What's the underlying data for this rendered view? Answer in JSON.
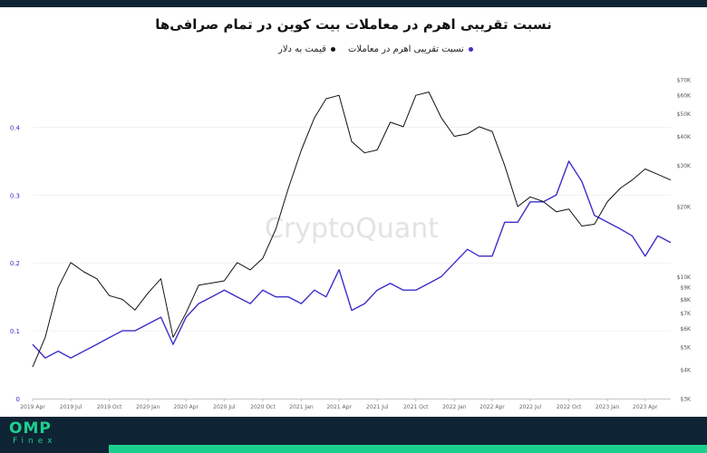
{
  "brand": {
    "logo_top": "OMP",
    "logo_bottom": "Finex"
  },
  "chart_data": {
    "type": "line",
    "title": "نسبت تقریبی اهرم در معاملات بیت کوین در تمام صرافی‌ها",
    "watermark": "CryptoQuant",
    "legend": {
      "leverage_label": "نسبت تقریبی اهرم در معاملات",
      "price_label": "قیمت به دلار"
    },
    "colors": {
      "leverage": "#3b2fc9",
      "price": "#111111"
    },
    "x_ticks": [
      "2019 Apr",
      "2019 Jul",
      "2019 Oct",
      "2020 Jan",
      "2020 Apr",
      "2020 Jul",
      "2020 Oct",
      "2021 Jan",
      "2021 Apr",
      "2021 Jul",
      "2021 Oct",
      "2022 Jan",
      "2022 Apr",
      "2022 Jul",
      "2022 Oct",
      "2023 Jan",
      "2023 Apr"
    ],
    "y_left": {
      "ylim": [
        0,
        0.47
      ],
      "ticks": [
        "0",
        "0.1",
        "0.2",
        "0.3",
        "0.4"
      ],
      "tick_values": [
        0,
        0.1,
        0.2,
        0.3,
        0.4
      ]
    },
    "y_right": {
      "scale": "log",
      "ylim": [
        3000,
        70000
      ],
      "ticks": [
        "$70K",
        "$60K",
        "$50K",
        "$40K",
        "$30K",
        "$20K",
        "$10K",
        "$9K",
        "$8K",
        "$7K",
        "$6K",
        "$5K",
        "$4K",
        "$3K"
      ],
      "tick_values": [
        70000,
        60000,
        50000,
        40000,
        30000,
        20000,
        10000,
        9000,
        8000,
        7000,
        6000,
        5000,
        4000,
        3000
      ]
    },
    "series": [
      {
        "key": "leverage",
        "axis": "left",
        "x": [
          "2019-04-01",
          "2019-05-01",
          "2019-06-01",
          "2019-07-01",
          "2019-08-01",
          "2019-09-01",
          "2019-10-01",
          "2019-11-01",
          "2019-12-01",
          "2020-01-01",
          "2020-02-01",
          "2020-03-01",
          "2020-04-01",
          "2020-05-01",
          "2020-06-01",
          "2020-07-01",
          "2020-08-01",
          "2020-09-01",
          "2020-10-01",
          "2020-11-01",
          "2020-12-01",
          "2021-01-01",
          "2021-02-01",
          "2021-03-01",
          "2021-04-01",
          "2021-05-01",
          "2021-06-01",
          "2021-07-01",
          "2021-08-01",
          "2021-09-01",
          "2021-10-01",
          "2021-11-01",
          "2021-12-01",
          "2022-01-01",
          "2022-02-01",
          "2022-03-01",
          "2022-04-01",
          "2022-05-01",
          "2022-06-01",
          "2022-07-01",
          "2022-08-01",
          "2022-09-01",
          "2022-10-01",
          "2022-11-01",
          "2022-12-01",
          "2023-01-01",
          "2023-02-01",
          "2023-03-01",
          "2023-04-01",
          "2023-05-01",
          "2023-06-01"
        ],
        "values": [
          0.08,
          0.06,
          0.07,
          0.06,
          0.07,
          0.08,
          0.09,
          0.1,
          0.1,
          0.11,
          0.12,
          0.08,
          0.12,
          0.14,
          0.15,
          0.16,
          0.15,
          0.14,
          0.16,
          0.15,
          0.15,
          0.14,
          0.16,
          0.15,
          0.19,
          0.13,
          0.14,
          0.16,
          0.17,
          0.16,
          0.16,
          0.17,
          0.18,
          0.2,
          0.22,
          0.21,
          0.21,
          0.26,
          0.26,
          0.29,
          0.29,
          0.3,
          0.35,
          0.32,
          0.27,
          0.26,
          0.25,
          0.24,
          0.21,
          0.24,
          0.23
        ]
      },
      {
        "key": "price",
        "axis": "right",
        "x": [
          "2019-04-01",
          "2019-05-01",
          "2019-06-01",
          "2019-07-01",
          "2019-08-01",
          "2019-09-01",
          "2019-10-01",
          "2019-11-01",
          "2019-12-01",
          "2020-01-01",
          "2020-02-01",
          "2020-03-01",
          "2020-04-01",
          "2020-05-01",
          "2020-06-01",
          "2020-07-01",
          "2020-08-01",
          "2020-09-01",
          "2020-10-01",
          "2020-11-01",
          "2020-12-01",
          "2021-01-01",
          "2021-02-01",
          "2021-03-01",
          "2021-04-01",
          "2021-05-01",
          "2021-06-01",
          "2021-07-01",
          "2021-08-01",
          "2021-09-01",
          "2021-10-01",
          "2021-11-01",
          "2021-12-01",
          "2022-01-01",
          "2022-02-01",
          "2022-03-01",
          "2022-04-01",
          "2022-05-01",
          "2022-06-01",
          "2022-07-01",
          "2022-08-01",
          "2022-09-01",
          "2022-10-01",
          "2022-11-01",
          "2022-12-01",
          "2023-01-01",
          "2023-02-01",
          "2023-03-01",
          "2023-04-01",
          "2023-05-01",
          "2023-06-01"
        ],
        "values": [
          4100,
          5500,
          9000,
          11500,
          10500,
          9800,
          8300,
          8000,
          7200,
          8500,
          9800,
          5500,
          7000,
          9200,
          9400,
          9600,
          11500,
          10700,
          12000,
          16000,
          24000,
          35000,
          48000,
          58000,
          60000,
          38000,
          34000,
          35000,
          46000,
          44000,
          60000,
          62000,
          48000,
          40000,
          41000,
          44000,
          42000,
          30000,
          20000,
          22000,
          21000,
          19000,
          19500,
          16500,
          16800,
          21000,
          24000,
          26000,
          29000,
          27500,
          26000
        ]
      }
    ]
  }
}
